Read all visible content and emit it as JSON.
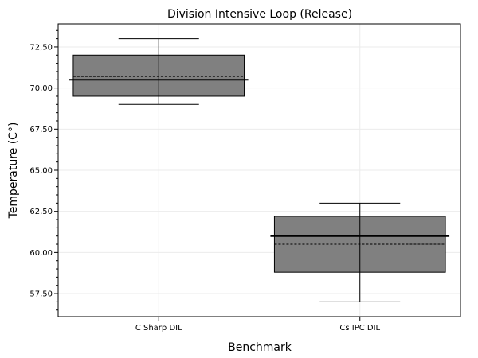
{
  "chart_data": {
    "type": "box",
    "title": "Division Intensive Loop (Release)",
    "xlabel": "Benchmark",
    "ylabel": "Temperature (C°)",
    "categories": [
      "C Sharp DIL",
      "Cs IPC DIL"
    ],
    "boxes": [
      {
        "name": "C Sharp DIL",
        "min": 69.0,
        "q1": 69.5,
        "median": 70.5,
        "mean": 70.7,
        "q3": 72.0,
        "max": 73.0
      },
      {
        "name": "Cs IPC DIL",
        "min": 57.0,
        "q1": 58.8,
        "median": 61.0,
        "mean": 60.5,
        "q3": 62.2,
        "max": 63.0
      }
    ],
    "ylim": [
      56.1,
      73.9
    ],
    "yticks": [
      57.5,
      60.0,
      62.5,
      65.0,
      67.5,
      70.0,
      72.5
    ],
    "ytick_labels": [
      "57,50",
      "60,00",
      "62,50",
      "65,00",
      "67,50",
      "70,00",
      "72,50"
    ],
    "grid": true,
    "colors": {
      "box_fill": "#808080",
      "grid": "#ebebeb",
      "line": "#000000"
    }
  }
}
